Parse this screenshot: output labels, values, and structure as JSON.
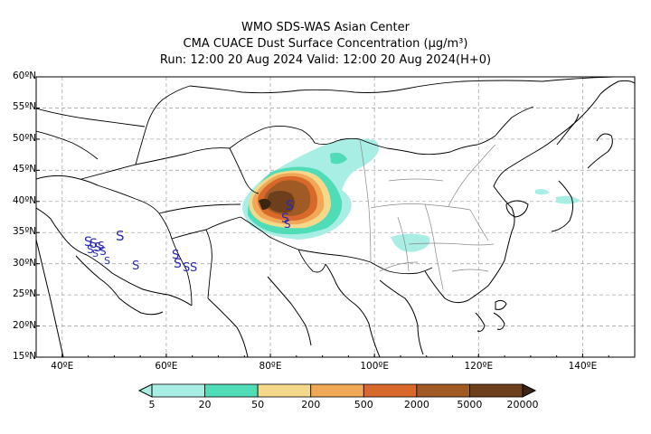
{
  "header": {
    "line1": "WMO SDS-WAS Asian Center",
    "line2": "CMA CUACE Dust Surface Concentration (μg/m³)",
    "line3": "Run: 12:00 20 Aug 2024    Valid: 12:00 20 Aug 2024(H+0)"
  },
  "map": {
    "lon_range": [
      35,
      150
    ],
    "lat_range": [
      15,
      60
    ],
    "lat_ticks": [
      "60ºN",
      "55ºN",
      "50ºN",
      "45ºN",
      "40ºN",
      "35ºN",
      "30ºN",
      "25ºN",
      "20ºN",
      "15ºN"
    ],
    "lat_values": [
      60,
      55,
      50,
      45,
      40,
      35,
      30,
      25,
      20,
      15
    ],
    "lon_ticks": [
      "40ºE",
      "60ºE",
      "80ºE",
      "100ºE",
      "120ºE",
      "140ºE"
    ],
    "lon_values": [
      40,
      60,
      80,
      100,
      120,
      140
    ],
    "grid": "dashed",
    "station_symbol": "S",
    "station_color": "#2a2ab4"
  },
  "colorbar": {
    "labels": [
      "5",
      "20",
      "50",
      "200",
      "500",
      "2000",
      "5000",
      "20000"
    ],
    "colors": [
      "#a8eee4",
      "#4fdcb6",
      "#f5d98a",
      "#f0a857",
      "#d8692a",
      "#a05a24",
      "#6e3f1c",
      "#3a2414"
    ]
  }
}
